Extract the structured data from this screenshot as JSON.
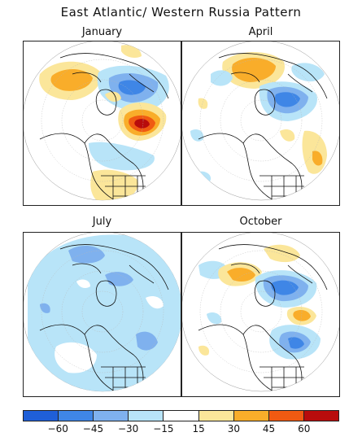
{
  "title": "East Atlantic/ Western Russia Pattern",
  "panels": [
    {
      "label": "January"
    },
    {
      "label": "April"
    },
    {
      "label": "July"
    },
    {
      "label": "October"
    }
  ],
  "colorbar": {
    "colors": [
      "#1f5fd8",
      "#3f86e6",
      "#7fb1ee",
      "#b8e4f8",
      "#ffffff",
      "#fbe69a",
      "#f9ad2a",
      "#f05a12",
      "#b80c0c"
    ],
    "ticks": [
      "−60",
      "−45",
      "−30",
      "−15",
      "15",
      "30",
      "45",
      "60"
    ]
  }
}
